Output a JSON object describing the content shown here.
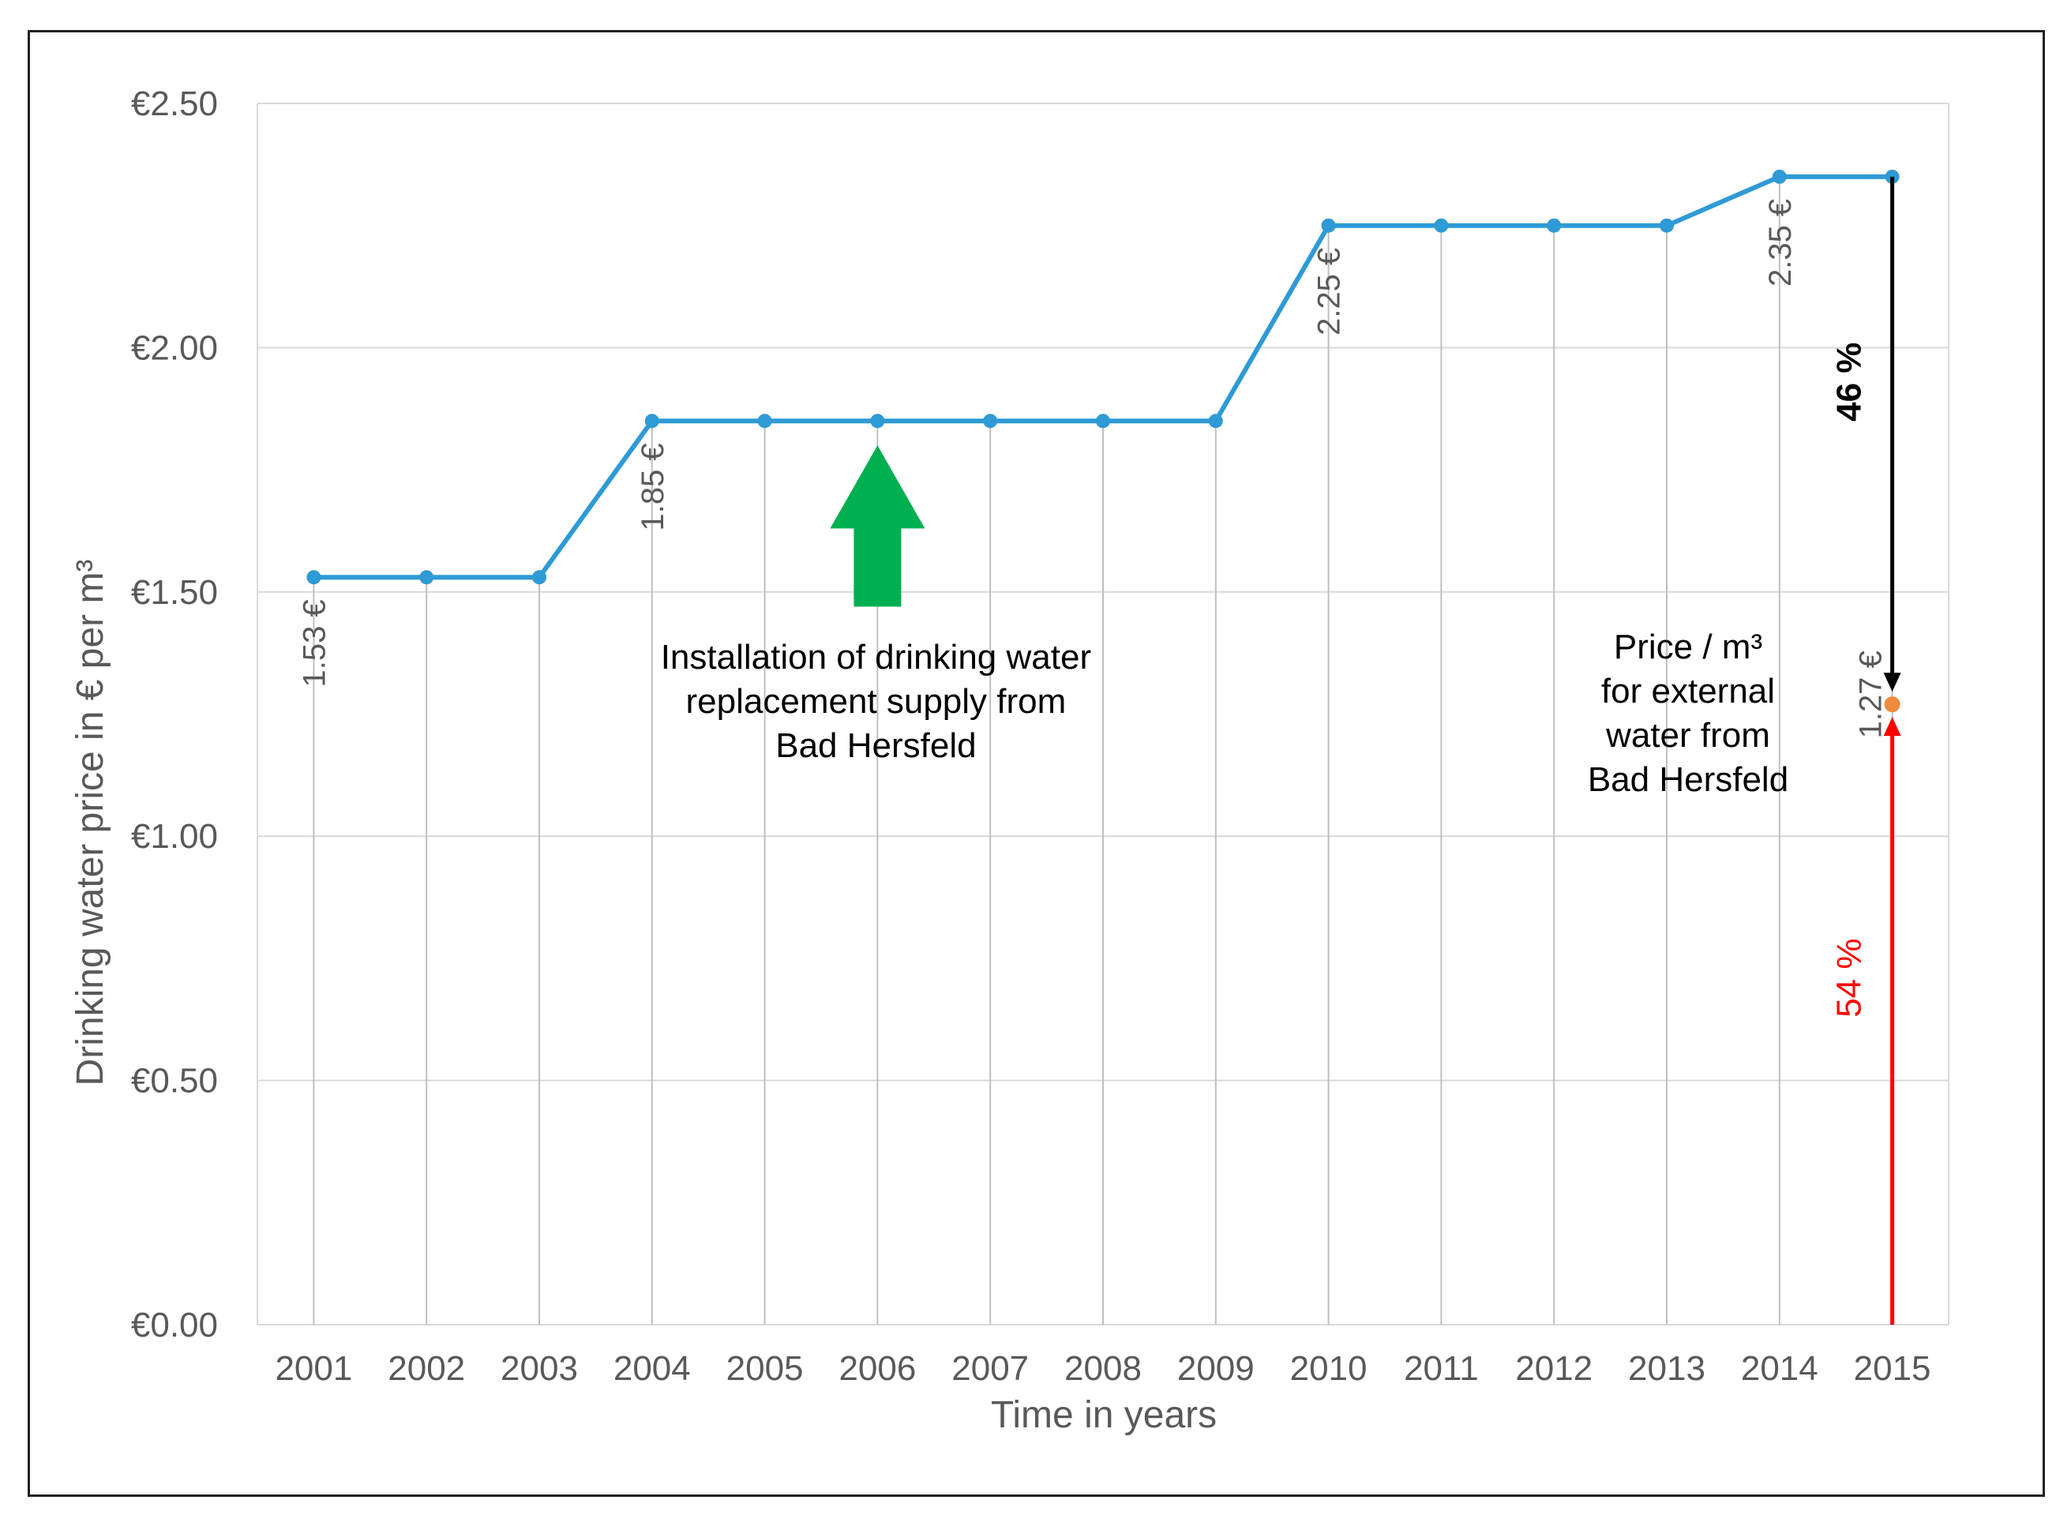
{
  "chart_data": {
    "type": "line",
    "title": "",
    "xlabel": "Time in years",
    "ylabel": "Drinking water price in € per m³",
    "ylim": [
      0,
      2.5
    ],
    "yticks": [
      "€0.00",
      "€0.50",
      "€1.00",
      "€1.50",
      "€2.00",
      "€2.50"
    ],
    "grid": true,
    "categories": [
      "2001",
      "2002",
      "2003",
      "2004",
      "2005",
      "2006",
      "2007",
      "2008",
      "2009",
      "2010",
      "2011",
      "2012",
      "2013",
      "2014",
      "2015"
    ],
    "series": [
      {
        "values": [
          1.53,
          1.53,
          1.53,
          1.85,
          1.85,
          1.85,
          1.85,
          1.85,
          1.85,
          2.25,
          2.25,
          2.25,
          2.25,
          2.35,
          2.35
        ],
        "color": "#2E9AD6"
      }
    ],
    "data_labels": [
      {
        "category": "2001",
        "value": 1.53,
        "text": "1.53 €"
      },
      {
        "category": "2004",
        "value": 1.85,
        "text": "1.85 €"
      },
      {
        "category": "2010",
        "value": 2.25,
        "text": "2.25 €"
      },
      {
        "category": "2014",
        "value": 2.35,
        "text": "2.35 €"
      }
    ],
    "external_point": {
      "category": "2015",
      "value": 1.27,
      "text": "1.27 €",
      "color": "#F08C3C"
    },
    "annotations": {
      "installation": {
        "category": "2006",
        "lines": [
          "Installation of drinking water",
          "replacement supply from",
          "Bad Hersfeld"
        ],
        "arrow_color": "#00B050"
      },
      "external_price": {
        "lines": [
          "Price / m³",
          "for external",
          "water from",
          "Bad Hersfeld"
        ]
      },
      "share_upper": {
        "text": "46 %",
        "color": "#000000"
      },
      "share_lower": {
        "text": "54 %",
        "color": "#FF0000"
      }
    },
    "colors": {
      "grid": "#D9D9D9",
      "vline": "#BFBFBF",
      "axis_text": "#595959"
    }
  }
}
